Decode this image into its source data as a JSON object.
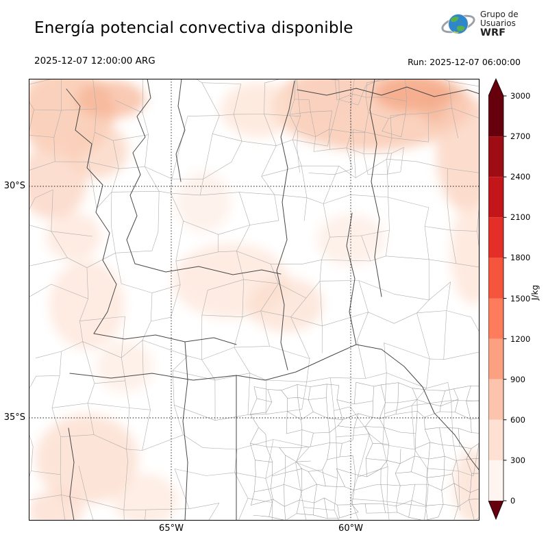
{
  "header": {
    "title": "Energía potencial convectiva disponible",
    "valid_time": "2025-12-07 12:00:00 ARG",
    "run_label": "Run: 2025-12-07 06:00:00",
    "logo_line1": "Grupo de",
    "logo_line2": "Usuarios",
    "logo_line3": "WRF"
  },
  "map": {
    "lat_labels": [
      "30°S",
      "35°S"
    ],
    "lon_labels": [
      "65°W",
      "60°W"
    ]
  },
  "colorbar": {
    "unit": "J/kg",
    "ticks": [
      "3000",
      "2700",
      "2400",
      "2100",
      "1800",
      "1500",
      "1200",
      "900",
      "600",
      "300",
      "0"
    ],
    "colors": [
      "#67000d",
      "#9e0d14",
      "#c2161b",
      "#e32f27",
      "#f6553d",
      "#fc7c5c",
      "#fca082",
      "#fcc4ac",
      "#fee1d3",
      "#fff5f0"
    ],
    "over_color": "#67000d",
    "under_color": "#67000d"
  },
  "chart_data": {
    "type": "heatmap",
    "title": "Energía potencial convectiva disponible",
    "variable": "CAPE (convective available potential energy)",
    "units": "J/kg",
    "valid_time": "2025-12-07 12:00:00 ARG",
    "model_run": "2025-12-07 06:00:00",
    "source_label": "Grupo de Usuarios WRF",
    "levels": [
      0,
      300,
      600,
      900,
      1200,
      1500,
      1800,
      2100,
      2400,
      2700,
      3000
    ],
    "colormap": "Reds",
    "colorbar_extend": "both",
    "lat_gridlines_deg_s": [
      30,
      35
    ],
    "lon_gridlines_deg_w": [
      65,
      60
    ],
    "approx_domain": {
      "lon_w": [
        69.0,
        56.4
      ],
      "lat_s": [
        27.7,
        37.2
      ]
    },
    "grid": "dotted lat/lon lines at labeled parallels/meridians",
    "legend_position": "right vertical colorbar",
    "value_summary": "Mostly 0–600 J/kg light shading; strongest patches (~300–600 J/kg) over the NE and NW corners of the domain and along the eastern edge; large areas near 0 in the center-south"
  }
}
